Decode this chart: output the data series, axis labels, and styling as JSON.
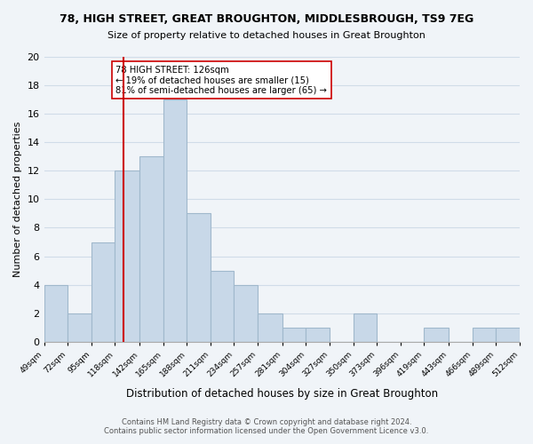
{
  "title": "78, HIGH STREET, GREAT BROUGHTON, MIDDLESBROUGH, TS9 7EG",
  "subtitle": "Size of property relative to detached houses in Great Broughton",
  "xlabel": "Distribution of detached houses by size in Great Broughton",
  "ylabel": "Number of detached properties",
  "bin_edges": [
    49,
    72,
    95,
    118,
    142,
    165,
    188,
    211,
    234,
    257,
    281,
    304,
    327,
    350,
    373,
    396,
    419,
    443,
    466,
    489,
    512
  ],
  "counts": [
    4,
    2,
    7,
    12,
    13,
    17,
    9,
    5,
    4,
    2,
    1,
    1,
    0,
    2,
    0,
    0,
    1,
    0,
    1,
    1
  ],
  "bar_color": "#c8d8e8",
  "bar_edgecolor": "#a0b8cc",
  "property_line_x": 126,
  "property_line_color": "#cc0000",
  "annotation_text": "78 HIGH STREET: 126sqm\n← 19% of detached houses are smaller (15)\n81% of semi-detached houses are larger (65) →",
  "annotation_box_color": "white",
  "annotation_box_edgecolor": "#cc0000",
  "ylim": [
    0,
    20
  ],
  "yticks": [
    0,
    2,
    4,
    6,
    8,
    10,
    12,
    14,
    16,
    18,
    20
  ],
  "tick_labels": [
    "49sqm",
    "72sqm",
    "95sqm",
    "118sqm",
    "142sqm",
    "165sqm",
    "188sqm",
    "211sqm",
    "234sqm",
    "257sqm",
    "281sqm",
    "304sqm",
    "327sqm",
    "350sqm",
    "373sqm",
    "396sqm",
    "419sqm",
    "443sqm",
    "466sqm",
    "489sqm",
    "512sqm"
  ],
  "footer_line1": "Contains HM Land Registry data © Crown copyright and database right 2024.",
  "footer_line2": "Contains public sector information licensed under the Open Government Licence v3.0.",
  "grid_color": "#d0dce8",
  "background_color": "#f0f4f8"
}
